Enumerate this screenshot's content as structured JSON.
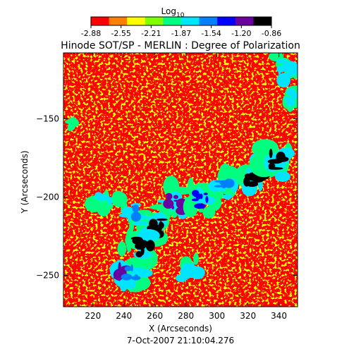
{
  "chart_data": {
    "type": "heatmap",
    "title": "Hinode SOT/SP - MERLIN : Degree of Polarization",
    "xlabel": "X (Arcseconds)",
    "ylabel": "Y (Arcseconds)",
    "xlim": [
      201,
      352
    ],
    "ylim": [
      -270,
      -108
    ],
    "x_ticks": [
      220,
      240,
      260,
      280,
      300,
      320,
      340
    ],
    "y_ticks": [
      -150,
      -200,
      -250
    ],
    "grid": false,
    "date_label": "7-Oct-2007 21:10:04.276",
    "colorbar": {
      "title_base": "Log",
      "title_sub": "10",
      "range": [
        -2.88,
        -0.86
      ],
      "ticks": [
        "-2.88",
        "-2.55",
        "-2.21",
        "-1.87",
        "-1.54",
        "-1.20",
        "-0.86"
      ],
      "colors": [
        "#ff0000",
        "#ff8000",
        "#ffff00",
        "#80ff00",
        "#00ff80",
        "#00e5ff",
        "#0080ff",
        "#0000ff",
        "#6a00a0",
        "#000000"
      ]
    },
    "high_polarization_regions": [
      {
        "x": 262,
        "y": -218,
        "level": -1.0
      },
      {
        "x": 252,
        "y": -232,
        "level": -0.95
      },
      {
        "x": 240,
        "y": -248,
        "level": -1.1
      },
      {
        "x": 272,
        "y": -205,
        "level": -1.2
      },
      {
        "x": 288,
        "y": -200,
        "level": -1.3
      },
      {
        "x": 305,
        "y": -192,
        "level": -1.5
      },
      {
        "x": 323,
        "y": -185,
        "level": -1.0
      },
      {
        "x": 337,
        "y": -178,
        "level": -0.95
      },
      {
        "x": 228,
        "y": -200,
        "level": -1.8
      },
      {
        "x": 248,
        "y": -212,
        "level": -1.6
      },
      {
        "x": 349,
        "y": -135,
        "level": -1.8
      },
      {
        "x": 343,
        "y": -118,
        "level": -1.7
      },
      {
        "x": 283,
        "y": -248,
        "level": -1.7
      },
      {
        "x": 205,
        "y": -152,
        "level": -2.0
      },
      {
        "x": 246,
        "y": -250,
        "level": -1.6
      }
    ]
  }
}
